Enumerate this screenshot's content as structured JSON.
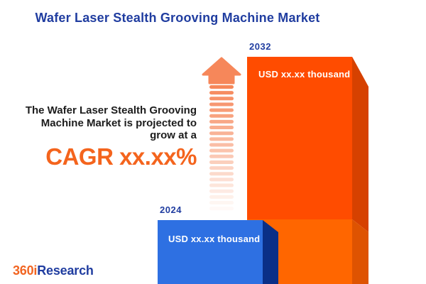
{
  "title": "Wafer Laser Stealth Grooving Machine Market",
  "projection": {
    "line1": "The Wafer Laser Stealth Grooving",
    "line2": "Machine Market is projected to",
    "line3": "grow at a",
    "cagr": "CAGR xx.xx%"
  },
  "chart_data": {
    "type": "bar",
    "title": "Wafer Laser Stealth Grooving Machine Market",
    "categories": [
      "2024",
      "2032"
    ],
    "value_labels": [
      "USD xx.xx thousand",
      "USD xx.xx thousand"
    ],
    "legend": "none",
    "axes": "none",
    "bars": [
      {
        "year": "2024",
        "value_label": "USD xx.xx thousand",
        "face_color": "#2e70e2",
        "side_color": "#0a2f87"
      },
      {
        "year": "2032",
        "value_label": "USD xx.xx thousand",
        "face_color": "#ff4c00",
        "side_color": "#d64100",
        "lower_face_color": "#ff6600",
        "lower_side_color": "#de5301"
      }
    ]
  },
  "icons": {
    "growth_arrow": "up-arrow-with-fading-stripes"
  },
  "colors": {
    "background": "#ffffff",
    "heading_blue": "#203da0",
    "body_text": "#1c1c1c",
    "cagr_orange": "#f4641d",
    "arrow_orange": "#f6875a",
    "logo_orange": "#f26522",
    "logo_blue": "#203da0"
  },
  "logo": {
    "part1": "360i",
    "part2": "Research"
  }
}
